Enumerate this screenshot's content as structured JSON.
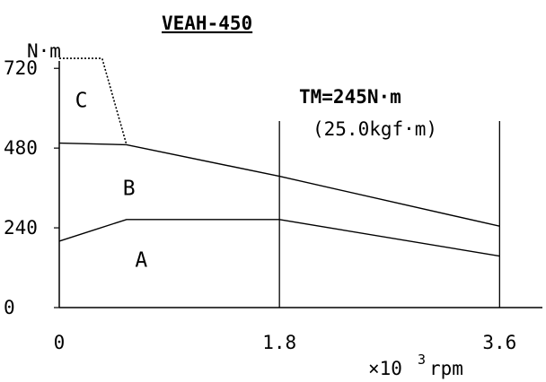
{
  "chart_data": {
    "type": "line",
    "title": "VEAH-450",
    "ylabel": "N·m",
    "xlabel": "×10",
    "xlabel_exponent": "3",
    "xlabel_unit": "rpm",
    "x_ticks": [
      {
        "value": 0,
        "label": "0"
      },
      {
        "value": 1.8,
        "label": "1.8"
      },
      {
        "value": 3.6,
        "label": "3.6"
      }
    ],
    "y_ticks": [
      {
        "value": 0,
        "label": "0"
      },
      {
        "value": 240,
        "label": "240"
      },
      {
        "value": 480,
        "label": "480"
      },
      {
        "value": 720,
        "label": "720"
      }
    ],
    "xlim": [
      0,
      3.95
    ],
    "ylim": [
      0,
      760
    ],
    "series": [
      {
        "name": "A",
        "style": "solid",
        "x": [
          0,
          0.55,
          1.8,
          3.6
        ],
        "y": [
          200,
          265,
          265,
          155
        ]
      },
      {
        "name": "B",
        "style": "solid",
        "x": [
          0,
          0.55,
          1.8,
          3.6
        ],
        "y": [
          495,
          490,
          395,
          245
        ]
      },
      {
        "name": "C",
        "style": "dotted",
        "x": [
          0,
          0.35,
          0.55
        ],
        "y": [
          750,
          750,
          490
        ]
      }
    ],
    "region_labels": [
      {
        "text": "C",
        "x": 0.18,
        "y": 625
      },
      {
        "text": "B",
        "x": 0.57,
        "y": 360
      },
      {
        "text": "A",
        "x": 0.67,
        "y": 145
      }
    ],
    "vertical_lines": [
      1.8,
      3.6
    ],
    "annotation": {
      "line1": "TM=245N·m",
      "line2": "(25.0kgf·m)"
    },
    "legend": "none",
    "grid": false
  }
}
